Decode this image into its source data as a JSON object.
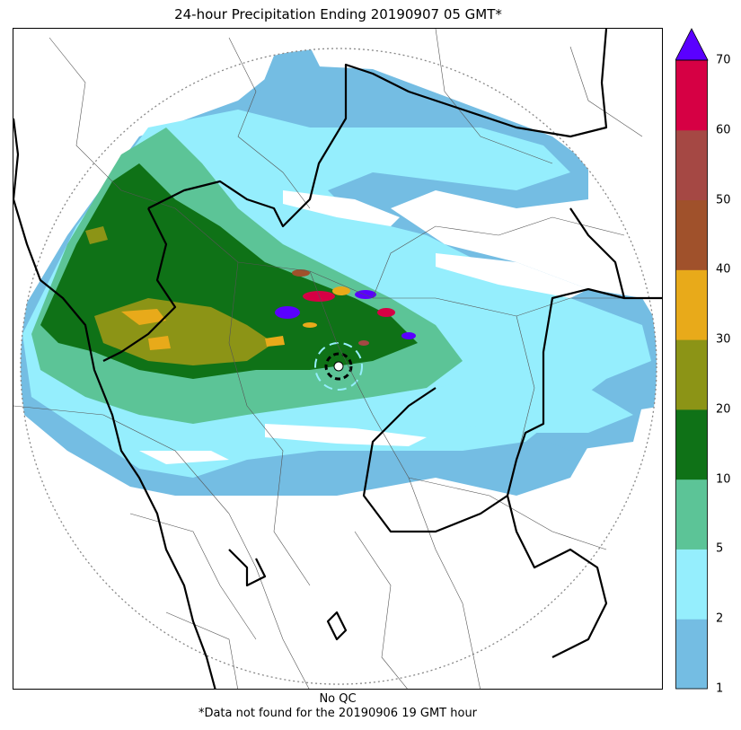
{
  "title": "24-hour Precipitation Ending 20190907 05 GMT*",
  "footer": {
    "qc_label": "No QC",
    "note": "*Data not found for the 20190906 19 GMT hour"
  },
  "colorbar": {
    "ticks": [
      "1",
      "2",
      "5",
      "10",
      "20",
      "30",
      "40",
      "50",
      "60",
      "70"
    ],
    "bins": [
      {
        "from": 1,
        "to": 2,
        "color": "#74bde3"
      },
      {
        "from": 2,
        "to": 5,
        "color": "#95eefd"
      },
      {
        "from": 5,
        "to": 10,
        "color": "#5cc497"
      },
      {
        "from": 10,
        "to": 20,
        "color": "#0f7217"
      },
      {
        "from": 20,
        "to": 30,
        "color": "#8c9416"
      },
      {
        "from": 30,
        "to": 40,
        "color": "#e8aa1a"
      },
      {
        "from": 40,
        "to": 50,
        "color": "#a0512b"
      },
      {
        "from": 50,
        "to": 60,
        "color": "#a54844"
      },
      {
        "from": 60,
        "to": 70,
        "color": "#d60044"
      }
    ],
    "extend_color": "#5a00ff"
  },
  "map": {
    "range_ring_color": "#888888",
    "state_border_color": "#000000",
    "district_border_color": "#555555",
    "radar_site_icon": "radar-site-icon"
  }
}
